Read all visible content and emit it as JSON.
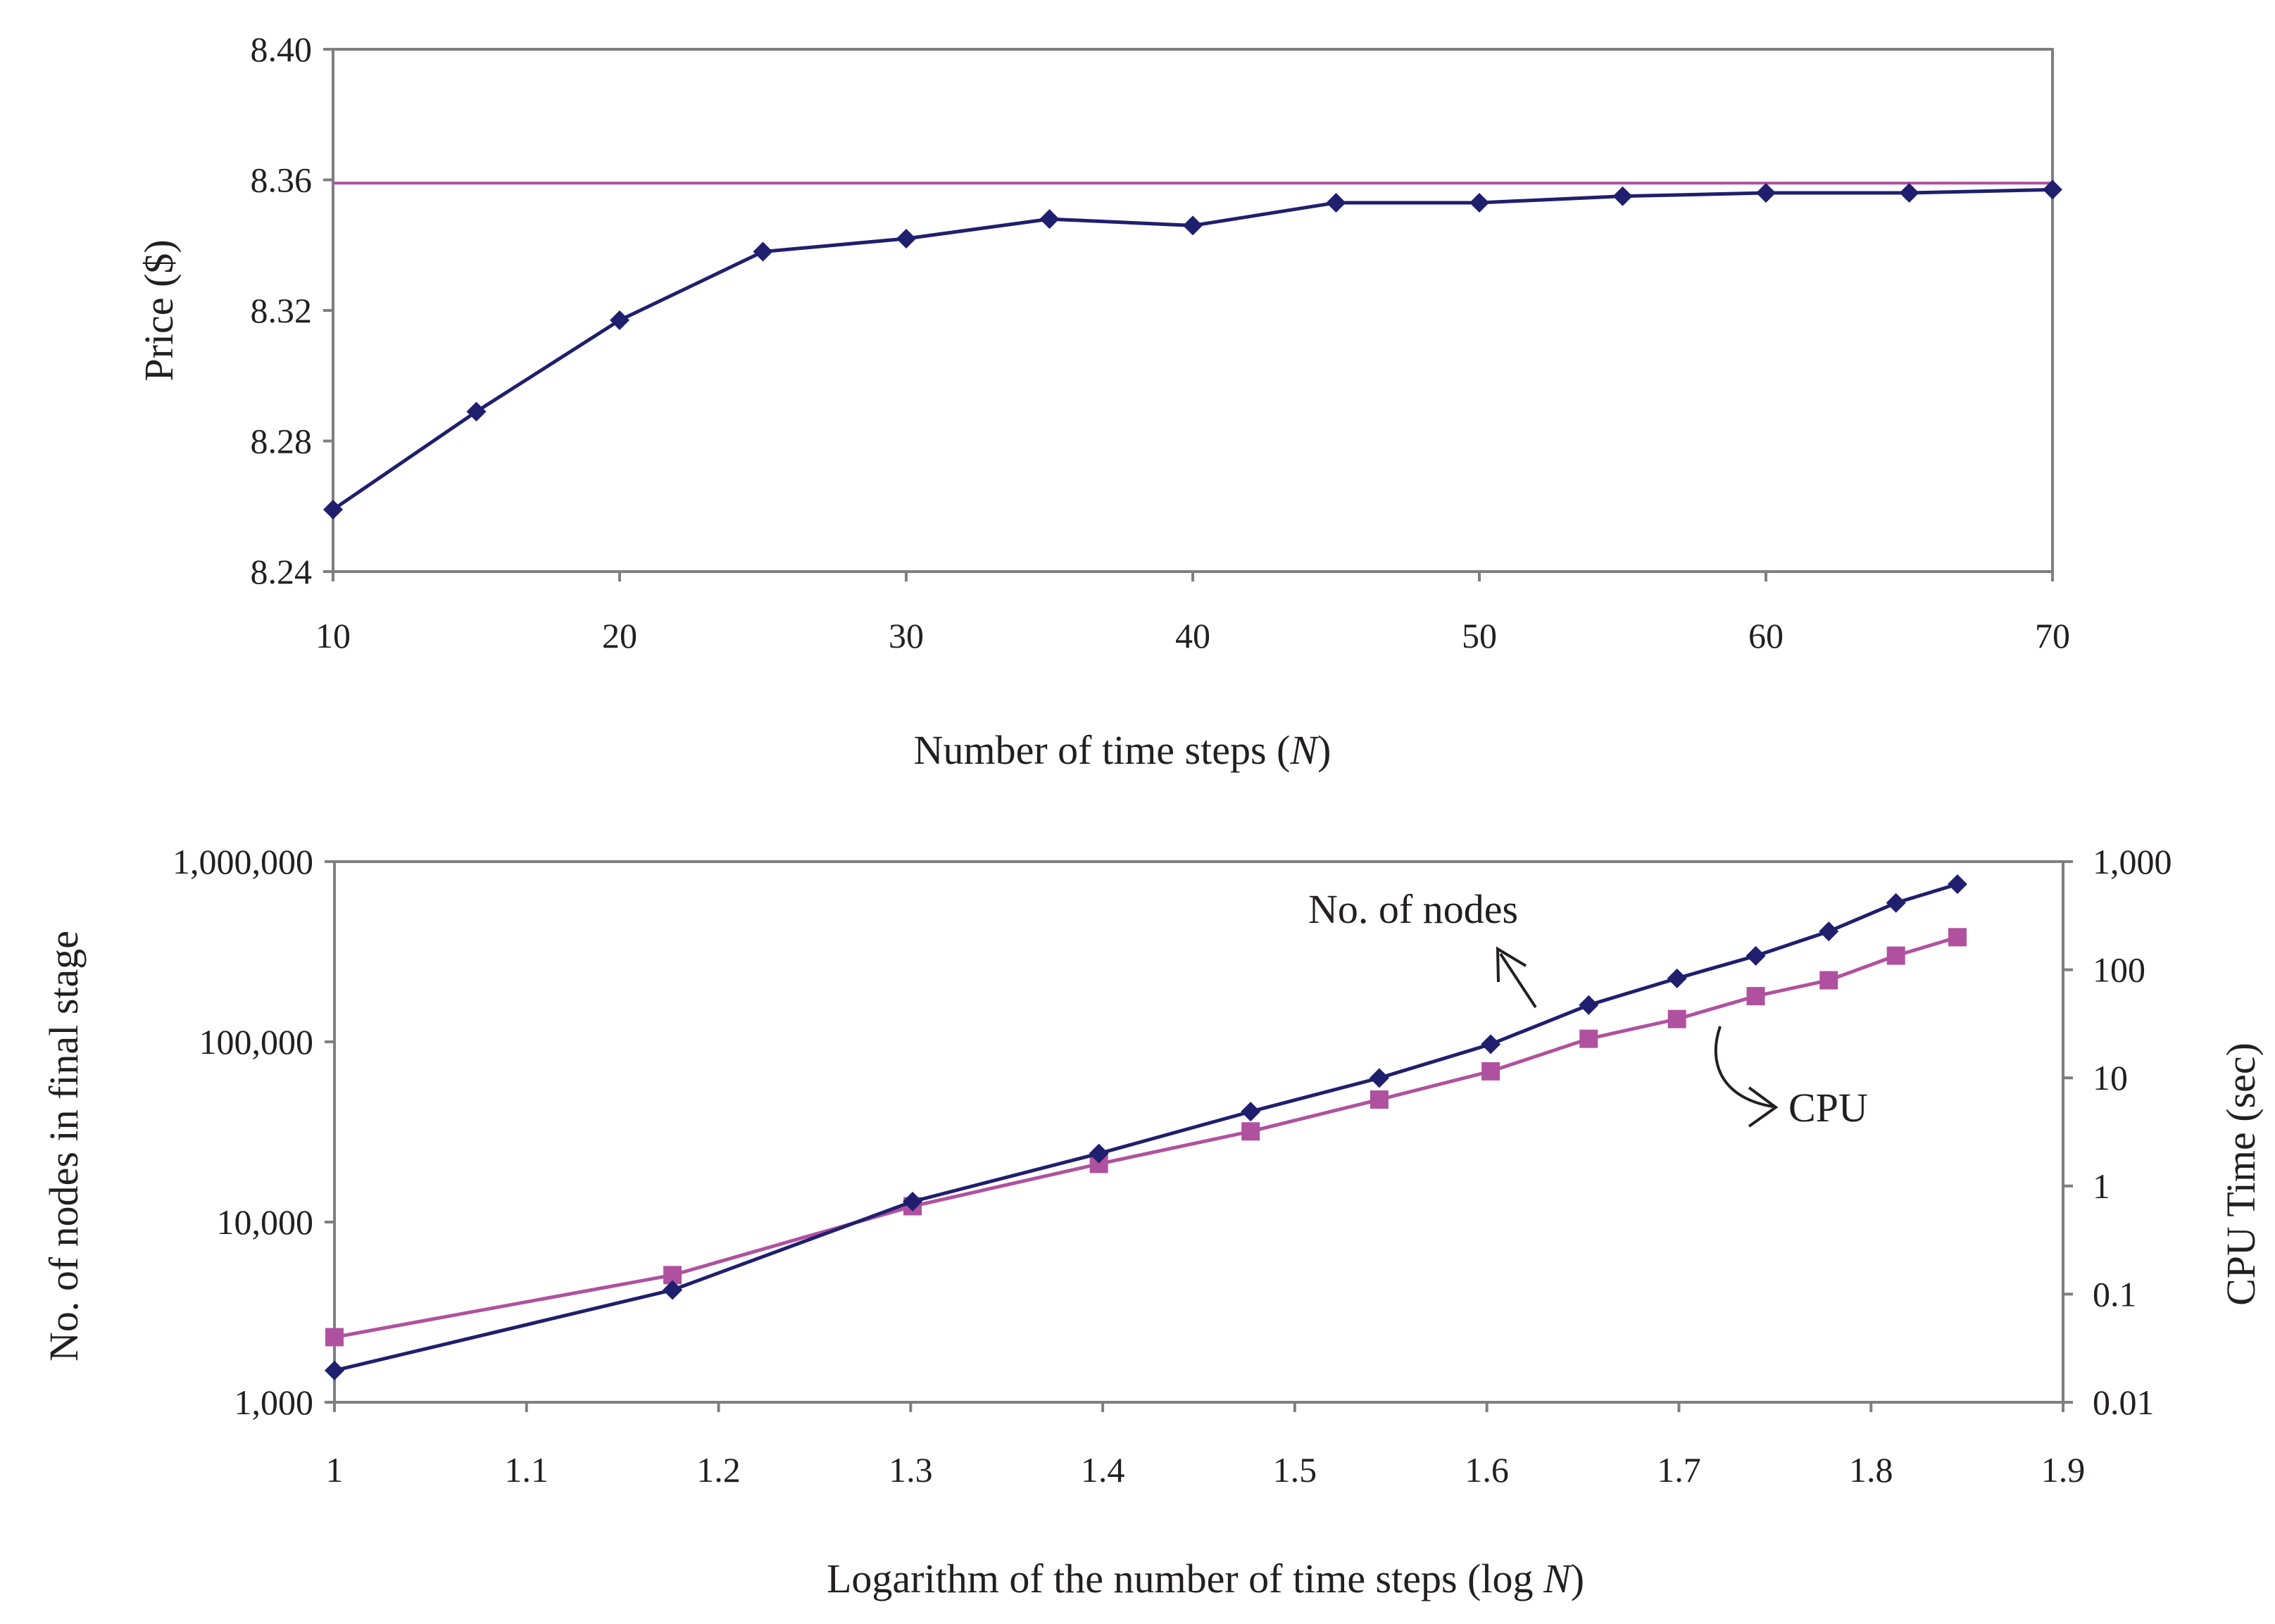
{
  "chart_data": [
    {
      "type": "line",
      "x": [
        10,
        15,
        20,
        25,
        30,
        35,
        40,
        45,
        50,
        55,
        60,
        65,
        70
      ],
      "series": [
        {
          "values": [
            8.259,
            8.289,
            8.317,
            8.338,
            8.342,
            8.348,
            8.346,
            8.353,
            8.353,
            8.355,
            8.356,
            8.356,
            8.357
          ],
          "color": "#1f1f6e",
          "marker": "diamond"
        },
        {
          "values": [
            8.359,
            8.359
          ],
          "x": [
            10,
            70
          ],
          "color": "#b0519f",
          "marker": "none"
        }
      ],
      "xlabel": "Number of time steps (N)",
      "xlabel_parts": [
        "Number of time steps (",
        "N",
        ")"
      ],
      "ylabel": "Price ($)",
      "xlim": [
        10,
        70
      ],
      "ylim": [
        8.24,
        8.4
      ],
      "xticks": [
        "10",
        "20",
        "30",
        "40",
        "50",
        "60",
        "70"
      ],
      "xtick_values": [
        10,
        20,
        30,
        40,
        50,
        60,
        70
      ],
      "yticks": [
        "8.24",
        "8.28",
        "8.32",
        "8.36",
        "8.40"
      ],
      "ytick_values": [
        8.24,
        8.28,
        8.32,
        8.36,
        8.4
      ],
      "grid": false
    },
    {
      "type": "line",
      "x": [
        1,
        1.176,
        1.301,
        1.398,
        1.477,
        1.544,
        1.602,
        1.653,
        1.699,
        1.74,
        1.778,
        1.813,
        1.845
      ],
      "series": [
        {
          "name": "No. of nodes",
          "axis": "left",
          "values": [
            1500,
            4200,
            13000,
            24000,
            41000,
            63000,
            97000,
            160000,
            225000,
            300000,
            410000,
            590000,
            750000
          ],
          "color": "#1f1f6e",
          "marker": "diamond"
        },
        {
          "name": "CPU",
          "axis": "right",
          "values": [
            0.04,
            0.15,
            0.65,
            1.6,
            3.2,
            6.3,
            11.5,
            23,
            35,
            57,
            80,
            135,
            200
          ],
          "color": "#b0519f",
          "marker": "square"
        }
      ],
      "xlabel": "Logarithm of the number of time steps (log N)",
      "xlabel_parts": [
        "Logarithm of the number of time steps (log ",
        "N",
        ")"
      ],
      "ylabel_left": "No. of nodes in final stage",
      "ylabel_right": "CPU Time (sec)",
      "xlim": [
        1,
        1.9
      ],
      "ylim_left": [
        1000,
        1000000
      ],
      "ylim_right": [
        0.01,
        1000
      ],
      "yscale": "log",
      "xticks": [
        "1",
        "1.1",
        "1.2",
        "1.3",
        "1.4",
        "1.5",
        "1.6",
        "1.7",
        "1.8",
        "1.9"
      ],
      "xtick_values": [
        1,
        1.1,
        1.2,
        1.3,
        1.4,
        1.5,
        1.6,
        1.7,
        1.8,
        1.9
      ],
      "yticks_left": [
        "1,000",
        "10,000",
        "100,000",
        "1,000,000"
      ],
      "ytick_values_left": [
        1000,
        10000,
        100000,
        1000000
      ],
      "yticks_right": [
        "0.01",
        "0.1",
        "1",
        "10",
        "100",
        "1,000"
      ],
      "ytick_values_right": [
        0.01,
        0.1,
        1,
        10,
        100,
        1000
      ],
      "annotations": [
        "No. of nodes",
        "CPU"
      ],
      "grid": false
    }
  ]
}
